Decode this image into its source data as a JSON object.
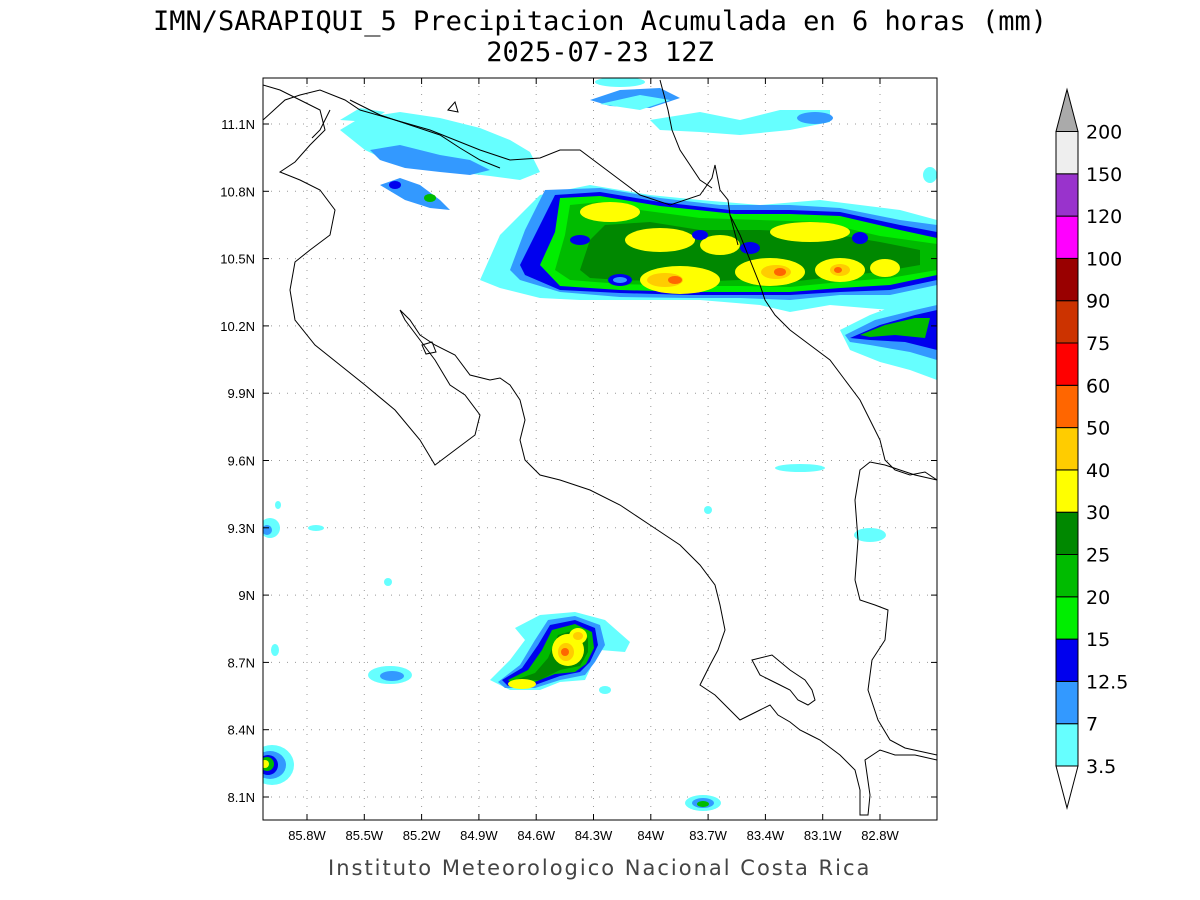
{
  "title_line1": "IMN/SARAPIQUI_5 Precipitacion Acumulada en 6 horas (mm)",
  "title_line2": "2025-07-23 12Z",
  "footer": "Instituto Meteorologico Nacional Costa Rica",
  "lat_ticks": [
    "11.1N",
    "10.8N",
    "10.5N",
    "10.2N",
    "9.9N",
    "9.6N",
    "9.3N",
    "9N",
    "8.7N",
    "8.4N",
    "8.1N"
  ],
  "lon_ticks": [
    "85.8W",
    "85.5W",
    "85.2W",
    "84.9W",
    "84.6W",
    "84.3W",
    "84W",
    "83.7W",
    "83.4W",
    "83.1W",
    "82.8W"
  ],
  "colorbar": {
    "levels": [
      "3.5",
      "7",
      "12.5",
      "15",
      "20",
      "25",
      "30",
      "40",
      "50",
      "60",
      "75",
      "90",
      "100",
      "120",
      "150",
      "200"
    ],
    "colors": [
      "#66ffff",
      "#3399ff",
      "#0000ee",
      "#00ee00",
      "#00bb00",
      "#008800",
      "#ffff00",
      "#ffcc00",
      "#ff6600",
      "#ff0000",
      "#cc3300",
      "#990000",
      "#ff00ff",
      "#9933cc",
      "#eeeeee",
      "#aaaaaa"
    ]
  }
}
